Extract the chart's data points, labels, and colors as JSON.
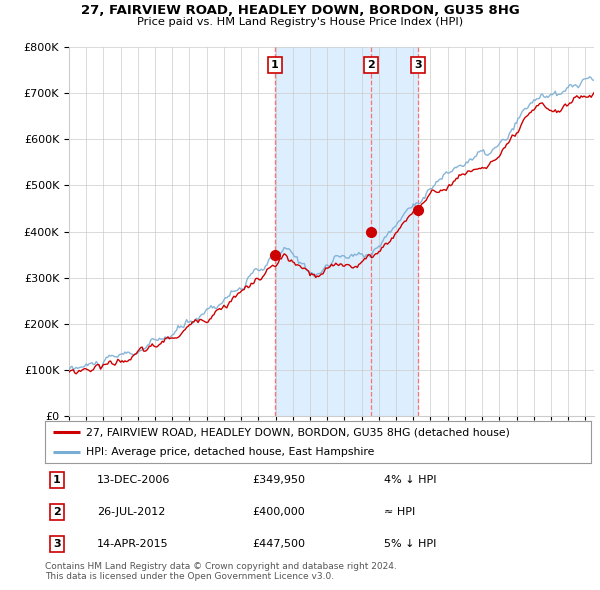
{
  "title": "27, FAIRVIEW ROAD, HEADLEY DOWN, BORDON, GU35 8HG",
  "subtitle": "Price paid vs. HM Land Registry's House Price Index (HPI)",
  "red_label": "27, FAIRVIEW ROAD, HEADLEY DOWN, BORDON, GU35 8HG (detached house)",
  "blue_label": "HPI: Average price, detached house, East Hampshire",
  "sales": [
    {
      "num": 1,
      "date": "13-DEC-2006",
      "price": 349950,
      "pct": "4%",
      "dir": "↓"
    },
    {
      "num": 2,
      "date": "26-JUL-2012",
      "price": 400000,
      "pct": "≈",
      "dir": ""
    },
    {
      "num": 3,
      "date": "14-APR-2015",
      "price": 447500,
      "pct": "5%",
      "dir": "↓"
    }
  ],
  "sale_years": [
    2006.96,
    2012.57,
    2015.29
  ],
  "footnote1": "Contains HM Land Registry data © Crown copyright and database right 2024.",
  "footnote2": "This data is licensed under the Open Government Licence v3.0.",
  "ylim": [
    0,
    800000
  ],
  "xlim_start": 1995.0,
  "xlim_end": 2025.5,
  "red_color": "#cc0000",
  "blue_color": "#7aadd4",
  "shade_color": "#ddeeff",
  "grid_color": "#cccccc",
  "bg_color": "#ffffff",
  "vline_color": "#ff6666"
}
